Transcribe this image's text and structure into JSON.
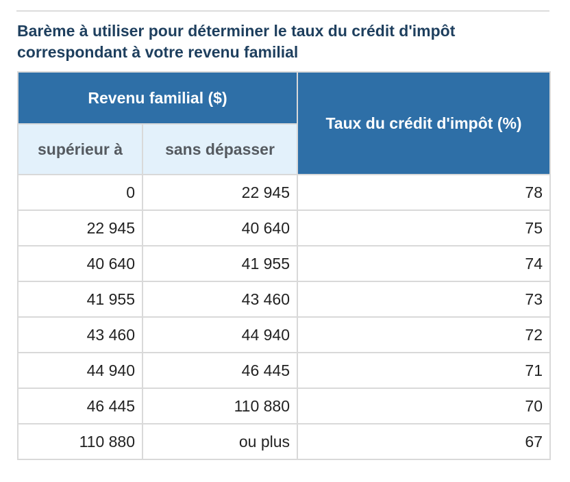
{
  "caption": "Barème à utiliser pour déterminer le taux du crédit d'impôt correspondant à votre revenu familial",
  "table": {
    "group_header": "Revenu familial ($)",
    "rate_header": "Taux du crédit d'impôt (%)",
    "sub_headers": {
      "lower": "supérieur à",
      "upper": "sans dépasser"
    },
    "rows": [
      {
        "lower": "0",
        "upper": "22 945",
        "rate": "78"
      },
      {
        "lower": "22 945",
        "upper": "40 640",
        "rate": "75"
      },
      {
        "lower": "40 640",
        "upper": "41 955",
        "rate": "74"
      },
      {
        "lower": "41 955",
        "upper": "43 460",
        "rate": "73"
      },
      {
        "lower": "43 460",
        "upper": "44 940",
        "rate": "72"
      },
      {
        "lower": "44 940",
        "upper": "46 445",
        "rate": "71"
      },
      {
        "lower": "46 445",
        "upper": "110 880",
        "rate": "70"
      },
      {
        "lower": "110 880",
        "upper": "ou plus",
        "rate": "67"
      }
    ]
  },
  "colors": {
    "header_blue": "#2e6fa7",
    "subheader_light_blue": "#e3f1fb",
    "caption_navy": "#1e3f5e",
    "border_gray": "#d9d9d9"
  }
}
